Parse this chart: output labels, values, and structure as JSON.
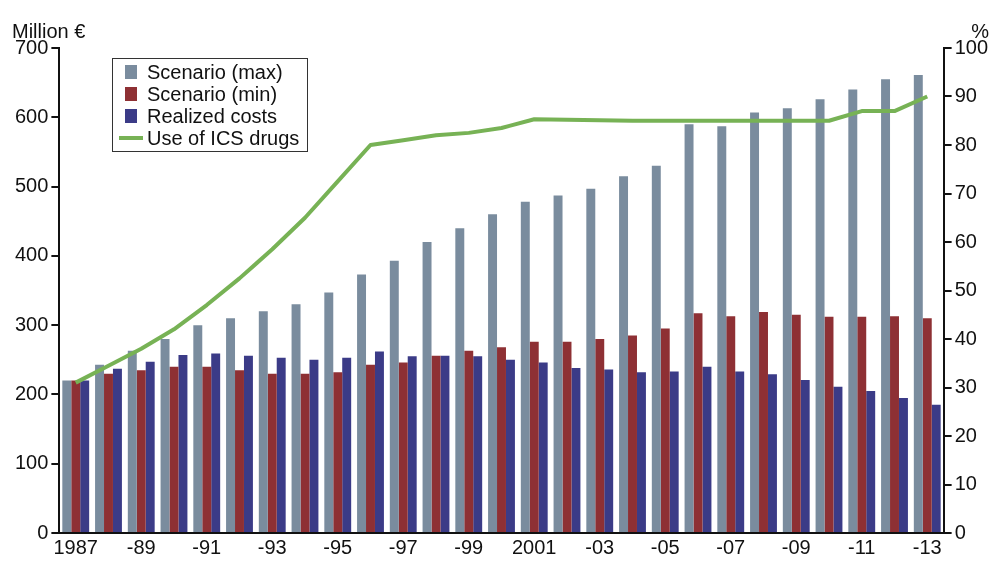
{
  "chart_data": {
    "type": "bar",
    "ylabel": "Million €",
    "y2label": "%",
    "categories": [
      "1987",
      null,
      "-89",
      null,
      "-91",
      null,
      "-93",
      null,
      "-95",
      null,
      "-97",
      null,
      "-99",
      null,
      "2001",
      null,
      "-03",
      null,
      "-05",
      null,
      "-07",
      null,
      "-09",
      null,
      "-11",
      null,
      "-13"
    ],
    "series": [
      {
        "name": "Scenario (max)",
        "color": "#7a8c9e",
        "values": [
          220,
          243,
          263,
          280,
          300,
          310,
          320,
          330,
          347,
          373,
          393,
          420,
          440,
          460,
          478,
          487,
          497,
          515,
          530,
          590,
          587,
          607,
          613,
          626,
          640,
          655,
          661
        ]
      },
      {
        "name": "Scenario (min)",
        "color": "#8e3034",
        "values": [
          220,
          230,
          235,
          240,
          240,
          235,
          230,
          230,
          232,
          243,
          246,
          256,
          263,
          268,
          276,
          276,
          280,
          285,
          295,
          317,
          313,
          319,
          315,
          312,
          312,
          313,
          310
        ]
      },
      {
        "name": "Realized costs",
        "color": "#3b3b87",
        "values": [
          220,
          237,
          247,
          257,
          259,
          256,
          253,
          250,
          253,
          262,
          255,
          256,
          255,
          250,
          246,
          238,
          236,
          232,
          233,
          240,
          233,
          229,
          221,
          211,
          205,
          195,
          185
        ]
      },
      {
        "name": "Use of ICS drugs",
        "type": "line",
        "axis": "y2",
        "color": "#77b255",
        "values": [
          31,
          34.5,
          38,
          42,
          47,
          52.5,
          58.5,
          65,
          72.5,
          80,
          81,
          82,
          82.5,
          83.5,
          85.3,
          85.2,
          85.1,
          85,
          85,
          85,
          85,
          85,
          85,
          85,
          87,
          87,
          90
        ]
      }
    ],
    "ylim": [
      0,
      700
    ],
    "yticks": [
      0,
      100,
      200,
      300,
      400,
      500,
      600,
      700
    ],
    "y2lim": [
      0,
      100
    ],
    "y2ticks": [
      0,
      10,
      20,
      30,
      40,
      50,
      60,
      70,
      80,
      90,
      100
    ],
    "grid": false,
    "legend": "top left",
    "marker": "none",
    "line_style": "solid"
  }
}
